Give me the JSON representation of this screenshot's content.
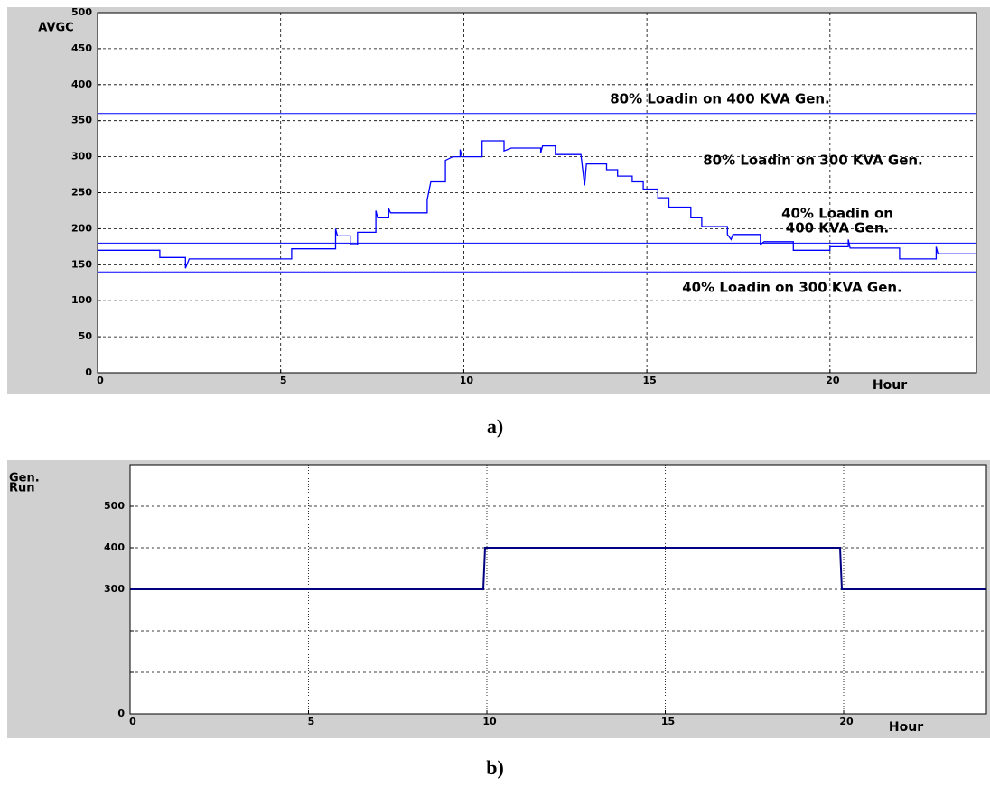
{
  "chart_data": [
    {
      "type": "line",
      "caption": "a)",
      "ylabel": [
        "AVGC"
      ],
      "xlabel": "Hour",
      "xlim": [
        0,
        24
      ],
      "ylim": [
        0,
        500
      ],
      "xticks": [
        0,
        5,
        10,
        15,
        20
      ],
      "yticks": [
        0,
        50,
        100,
        150,
        200,
        250,
        300,
        350,
        400,
        450,
        500
      ],
      "grid": true,
      "hlines": [
        {
          "value": 360,
          "color": "#0000ff"
        },
        {
          "value": 280,
          "color": "#0000ff"
        },
        {
          "value": 180,
          "color": "#0000ff"
        },
        {
          "value": 140,
          "color": "#0000ff"
        }
      ],
      "annotations": [
        "80% Loadin on 400 KVA Gen.",
        "80% Loadin on 300 KVA Gen.",
        "40% Loadin on",
        "400 KVA Gen.",
        "40% Loadin on 300 KVA Gen."
      ],
      "series": [
        {
          "color": "#0000ff",
          "x": [
            0,
            1.7,
            1.7,
            2.4,
            2.4,
            2.5,
            5.3,
            5.3,
            6.5,
            6.5,
            6.55,
            6.9,
            6.9,
            7.1,
            7.1,
            7.6,
            7.6,
            7.65,
            7.95,
            7.95,
            8.0,
            9.0,
            9.0,
            9.1,
            9.5,
            9.5,
            9.7,
            9.9,
            9.9,
            9.95,
            10.5,
            10.5,
            11.1,
            11.1,
            11.3,
            12.1,
            12.1,
            12.15,
            12.5,
            12.5,
            13.2,
            13.3,
            13.35,
            13.9,
            13.9,
            14.2,
            14.2,
            14.6,
            14.6,
            14.9,
            14.9,
            15.3,
            15.3,
            15.6,
            15.6,
            16.2,
            16.2,
            16.5,
            16.5,
            17.2,
            17.2,
            17.3,
            17.35,
            18.1,
            18.1,
            18.2,
            19.0,
            19.0,
            20.0,
            20.0,
            20.5,
            20.5,
            20.55,
            21.9,
            21.9,
            22.9,
            22.9,
            22.95,
            24
          ],
          "values": [
            170,
            170,
            160,
            160,
            145,
            158,
            158,
            172,
            172,
            200,
            190,
            190,
            178,
            178,
            195,
            195,
            225,
            215,
            215,
            228,
            222,
            222,
            240,
            265,
            265,
            295,
            300,
            300,
            310,
            300,
            300,
            322,
            322,
            308,
            312,
            312,
            305,
            315,
            315,
            303,
            303,
            260,
            290,
            290,
            282,
            282,
            273,
            273,
            265,
            265,
            255,
            255,
            243,
            243,
            230,
            230,
            215,
            215,
            203,
            203,
            192,
            185,
            192,
            192,
            178,
            182,
            182,
            170,
            170,
            175,
            175,
            185,
            173,
            173,
            158,
            158,
            175,
            165,
            165
          ]
        }
      ]
    },
    {
      "type": "line",
      "caption": "b)",
      "ylabel": [
        "Gen.",
        "Run"
      ],
      "xlabel": "Hour",
      "xlim": [
        0,
        24
      ],
      "ylim": [
        0,
        600
      ],
      "xticks": [
        0,
        5,
        10,
        15,
        20
      ],
      "yticks": [
        0,
        {
          "value": 100,
          "label": null
        },
        {
          "value": 200,
          "label": null
        },
        300,
        400,
        500
      ],
      "grid": true,
      "series": [
        {
          "color": "#000080",
          "x": [
            0,
            9.9,
            9.95,
            19.9,
            19.95,
            24
          ],
          "values": [
            300,
            300,
            400,
            400,
            300,
            300
          ]
        }
      ]
    }
  ]
}
